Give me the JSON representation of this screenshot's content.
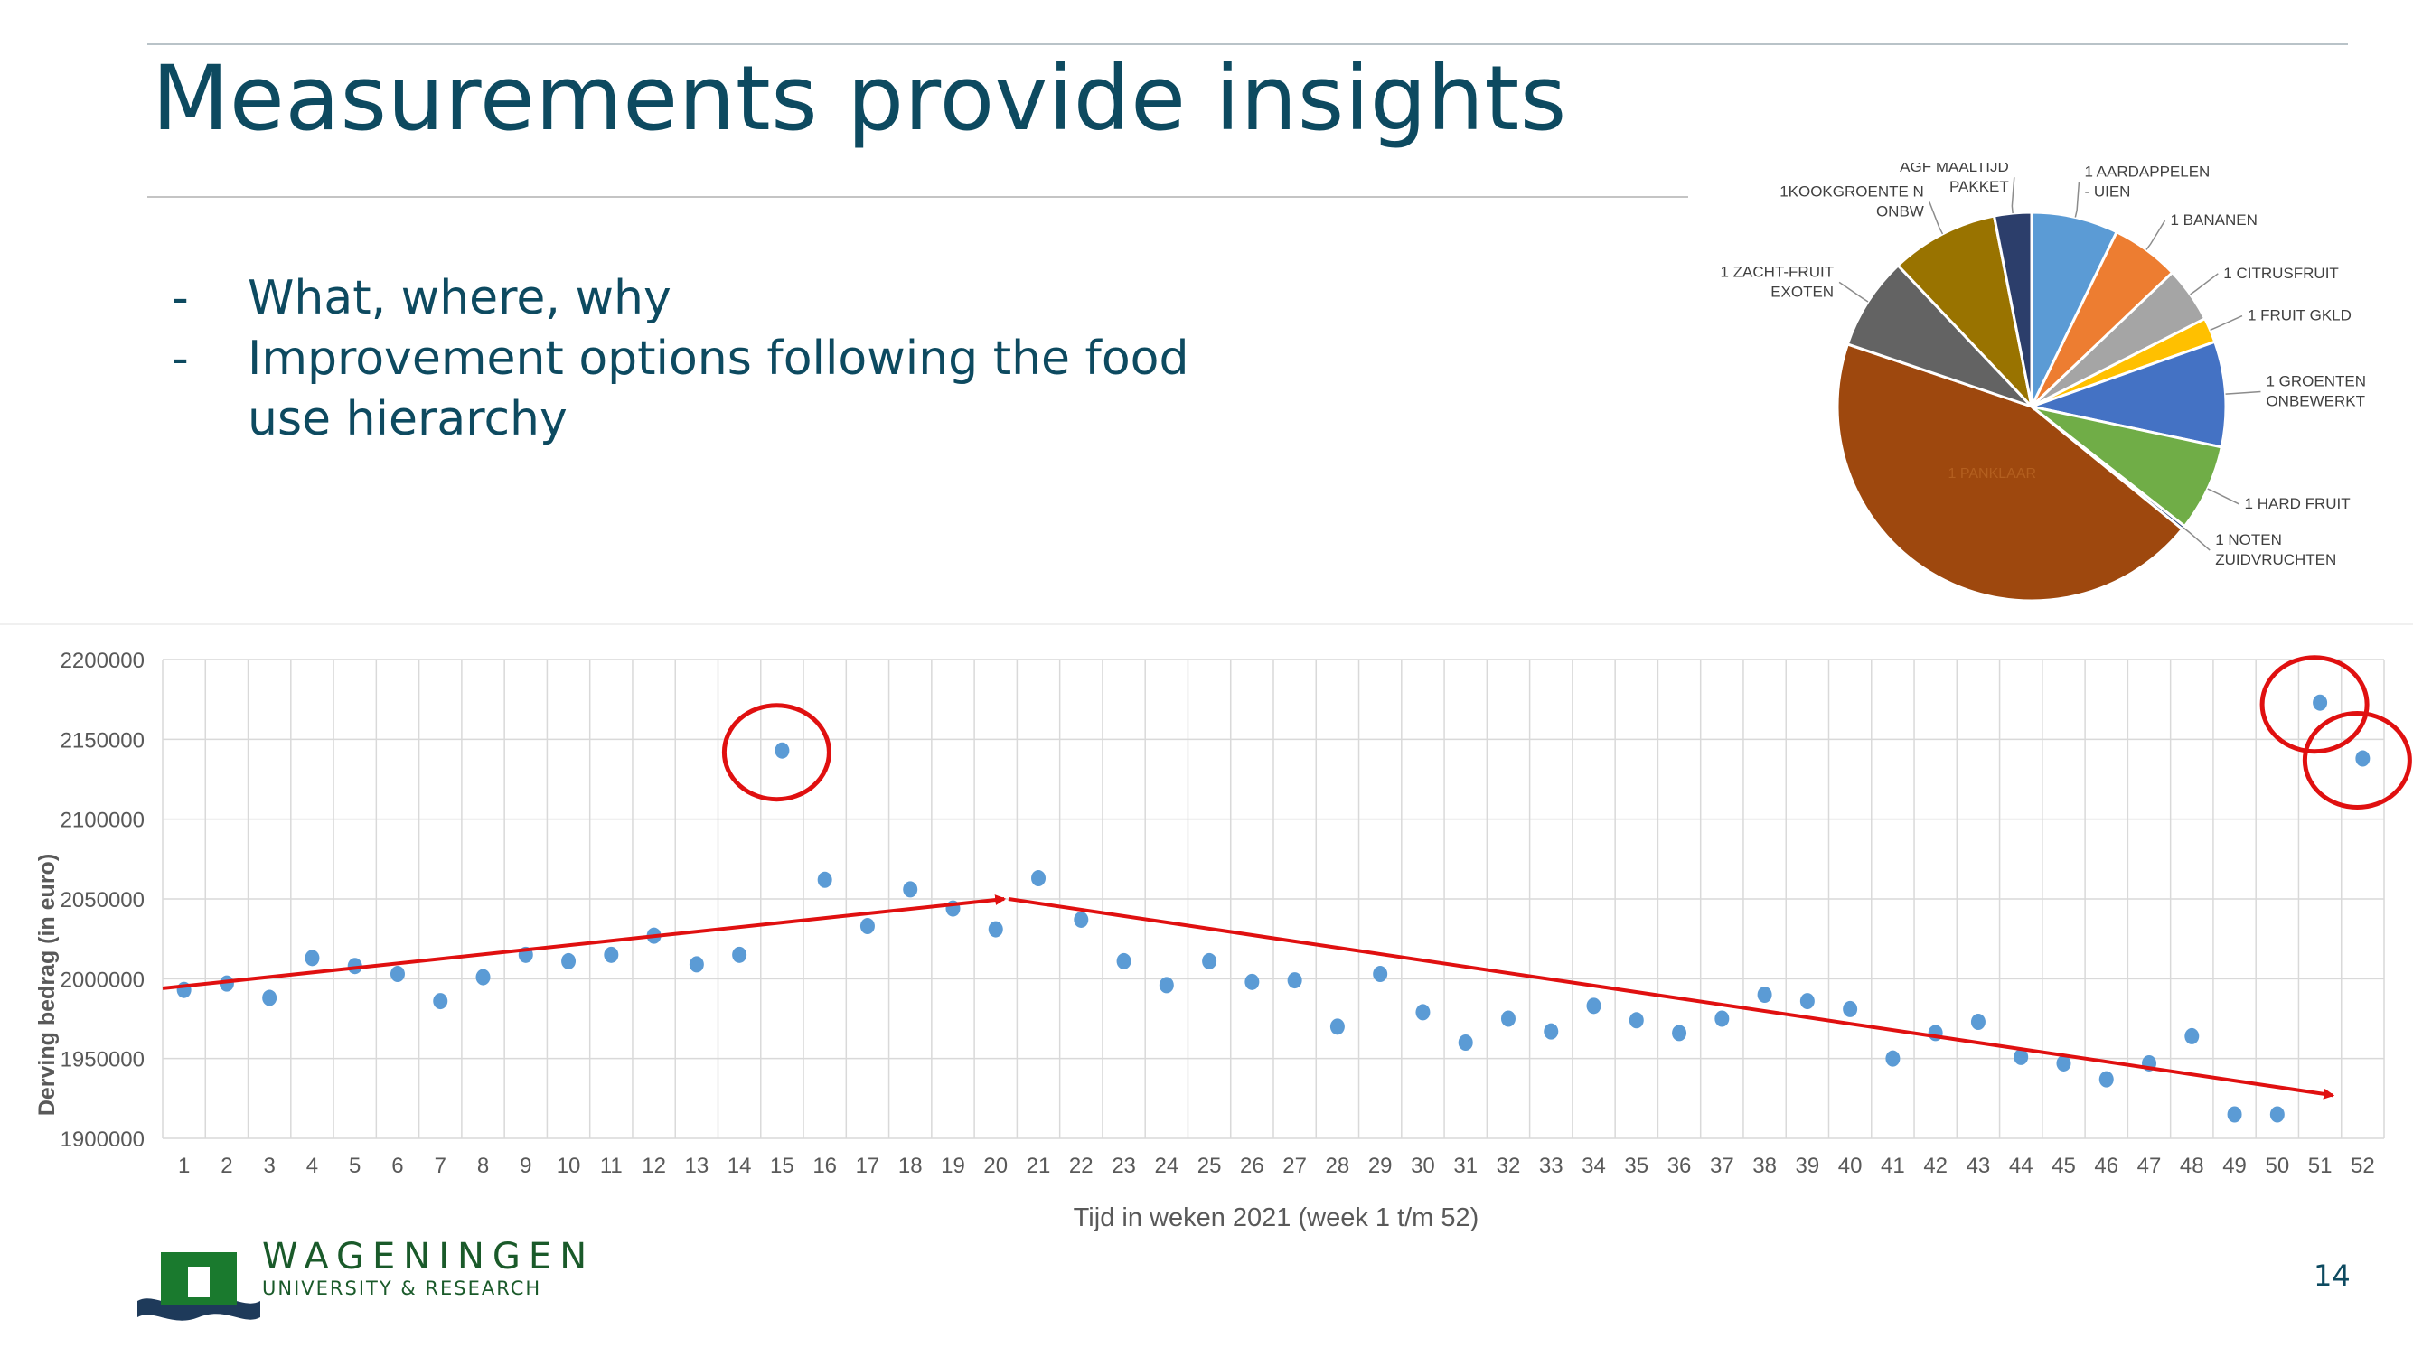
{
  "slide": {
    "title": "Measurements provide insights",
    "bullets": [
      {
        "dash": "-",
        "text": "What, where, why"
      },
      {
        "dash": "-",
        "text": "Improvement options following the food use hierarchy"
      }
    ],
    "page_number": "14"
  },
  "logo": {
    "word": "WAGENINGEN",
    "sub": "UNIVERSITY & RESEARCH",
    "green": "#1a7a2e",
    "navy": "#1e3a5a"
  },
  "chart_data": [
    {
      "type": "pie",
      "slices": [
        {
          "label": "1 AARDAPPELEN - UIEN",
          "value": 7.0,
          "color": "#5b9bd5"
        },
        {
          "label": "1 BANANEN",
          "value": 5.5,
          "color": "#ed7d31"
        },
        {
          "label": "1 CITRUSFRUIT",
          "value": 4.5,
          "color": "#a5a5a5"
        },
        {
          "label": "1 FRUIT GKLD",
          "value": 2.0,
          "color": "#ffc000"
        },
        {
          "label": "1 GROENTEN ONBEWERKT",
          "value": 8.5,
          "color": "#4472c4"
        },
        {
          "label": "1 HARD FRUIT",
          "value": 7.0,
          "color": "#70ad47"
        },
        {
          "label": "1 NOTEN ZUIDVRUCHTEN",
          "value": 0.3,
          "color": "#264478"
        },
        {
          "label": "1 PANKLAAR",
          "value": 43.0,
          "color": "#9e480e"
        },
        {
          "label": "1 ZACHT-FRUIT EXOTEN",
          "value": 7.5,
          "color": "#636363"
        },
        {
          "label": "1KOOKGROENTE N ONBW",
          "value": 8.7,
          "color": "#997300"
        },
        {
          "label": "AGF MAALTIJD PAKKET",
          "value": 3.0,
          "color": "#2c3e6b"
        }
      ]
    },
    {
      "type": "scatter",
      "xlabel": "Tijd in weken 2021 (week 1 t/m 52)",
      "ylabel": "Derving bedrag (in euro)",
      "ylim": [
        1900000,
        2200000
      ],
      "yticks": [
        "1900000",
        "1950000",
        "2000000",
        "2050000",
        "2100000",
        "2150000",
        "2200000"
      ],
      "x": [
        1,
        2,
        3,
        4,
        5,
        6,
        7,
        8,
        9,
        10,
        11,
        12,
        13,
        14,
        15,
        16,
        17,
        18,
        19,
        20,
        21,
        22,
        23,
        24,
        25,
        26,
        27,
        28,
        29,
        30,
        31,
        32,
        33,
        34,
        35,
        36,
        37,
        38,
        39,
        40,
        41,
        42,
        43,
        44,
        45,
        46,
        47,
        48,
        49,
        50,
        51,
        52
      ],
      "values": [
        1993000,
        1997000,
        1988000,
        2013000,
        2008000,
        2003000,
        1986000,
        2001000,
        2015000,
        2011000,
        2015000,
        2027000,
        2009000,
        2015000,
        2143000,
        2062000,
        2033000,
        2056000,
        2044000,
        2031000,
        2063000,
        2037000,
        2011000,
        1996000,
        2011000,
        1998000,
        1999000,
        1970000,
        2003000,
        1979000,
        1960000,
        1975000,
        1967000,
        1983000,
        1974000,
        1966000,
        1975000,
        1990000,
        1986000,
        1981000,
        1950000,
        1966000,
        1973000,
        1951000,
        1947000,
        1937000,
        1947000,
        1964000,
        1915000,
        1915000,
        2173000,
        2138000
      ],
      "trend_lines": [
        {
          "from": [
            0.5,
            1994000
          ],
          "to": [
            20.2,
            2050000
          ]
        },
        {
          "from": [
            20.3,
            2050000
          ],
          "to": [
            51.3,
            1927000
          ]
        }
      ],
      "circled_weeks": [
        15,
        51,
        52
      ],
      "marker_color": "#5b9bd5",
      "annotation_color": "#e01010"
    }
  ]
}
